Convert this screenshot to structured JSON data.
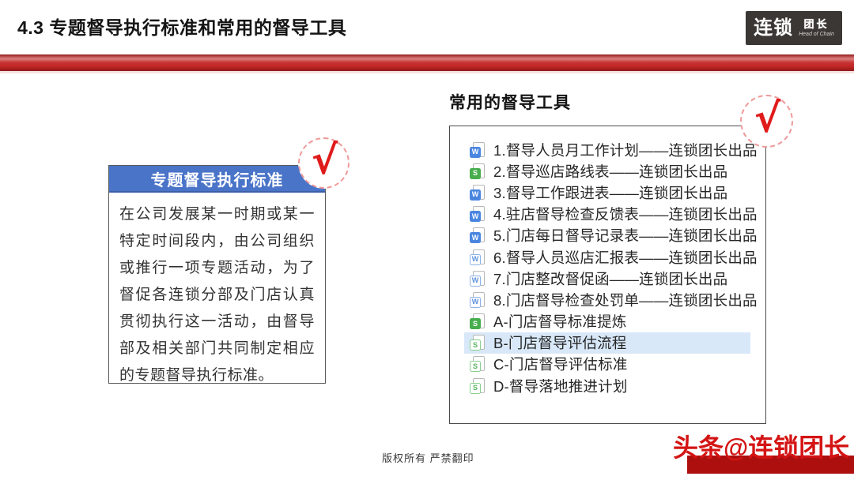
{
  "header": {
    "title": "4.3 专题督导执行标准和常用的督导工具"
  },
  "logo": {
    "primary": "连锁",
    "secondary": "团长",
    "tagline": "Head of Chain"
  },
  "left_panel": {
    "title": "专题督导执行标准",
    "body": "在公司发展某一时期或某一特定时间段内，由公司组织或推行一项专题活动，为了督促各连锁分部及门店认真贯彻执行这一活动，由督导部及相关部门共同制定相应的专题督导执行标准。"
  },
  "right_panel": {
    "title": "常用的督导工具",
    "items": [
      {
        "label": "1.督导人员月工作计划——连锁团长出品",
        "badge": "W",
        "color": "blue",
        "style": "solid",
        "highlighted": false
      },
      {
        "label": "2.督导巡店路线表——连锁团长出品",
        "badge": "S",
        "color": "green",
        "style": "solid",
        "highlighted": false
      },
      {
        "label": "3.督导工作跟进表——连锁团长出品",
        "badge": "W",
        "color": "blue",
        "style": "solid",
        "highlighted": false
      },
      {
        "label": "4.驻店督导检查反馈表——连锁团长出品",
        "badge": "W",
        "color": "blue",
        "style": "solid",
        "highlighted": false
      },
      {
        "label": "5.门店每日督导记录表——连锁团长出品",
        "badge": "W",
        "color": "blue",
        "style": "solid",
        "highlighted": false
      },
      {
        "label": "6.督导人员巡店汇报表——连锁团长出品",
        "badge": "W",
        "color": "blue",
        "style": "outline",
        "highlighted": false
      },
      {
        "label": "7.门店整改督促函——连锁团长出品",
        "badge": "W",
        "color": "blue",
        "style": "outline",
        "highlighted": false
      },
      {
        "label": "8.门店督导检查处罚单——连锁团长出品",
        "badge": "W",
        "color": "blue",
        "style": "outline",
        "highlighted": false
      },
      {
        "label": "A-门店督导标准提炼",
        "badge": "S",
        "color": "green",
        "style": "solid",
        "highlighted": false
      },
      {
        "label": "B-门店督导评估流程",
        "badge": "S",
        "color": "green",
        "style": "outline",
        "highlighted": true
      },
      {
        "label": "C-门店督导评估标准",
        "badge": "S",
        "color": "green",
        "style": "outline",
        "highlighted": false
      },
      {
        "label": "D-督导落地推进计划",
        "badge": "S",
        "color": "green",
        "style": "outline",
        "highlighted": false
      }
    ]
  },
  "decor": {
    "check_glyph": "√"
  },
  "footer": {
    "copyright": "版权所有 严禁翻印",
    "watermark": "头条@连锁团长"
  },
  "colors": {
    "accent_red": "#c22525",
    "check_red": "#e01b1b",
    "panel_header_blue": "#4a74c8",
    "highlight_row": "#d8e8f9",
    "word_icon_blue": "#4a86e0",
    "excel_icon_green": "#47ad4d",
    "logo_background": "#3b3734",
    "ribbon_red": "#ad0f0f",
    "watermark_red": "#d41414"
  }
}
